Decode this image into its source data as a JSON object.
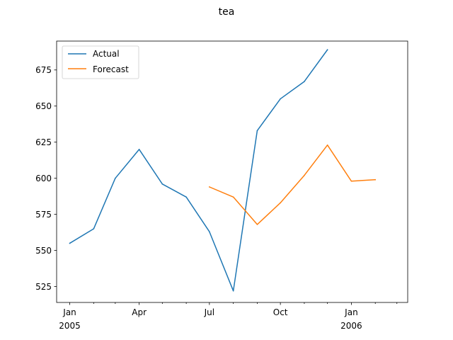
{
  "chart_data": {
    "type": "line",
    "title": "tea",
    "xlabel": "",
    "ylabel": "",
    "x_range": [
      "2004-12-15",
      "2006-03-15"
    ],
    "ylim": [
      514,
      695
    ],
    "y_ticks": [
      525,
      550,
      575,
      600,
      625,
      650,
      675
    ],
    "x_ticks_major": [
      {
        "date": "2005-01-01",
        "label": "Jan",
        "sub": "2005"
      },
      {
        "date": "2005-04-01",
        "label": "Apr",
        "sub": ""
      },
      {
        "date": "2005-07-01",
        "label": "Jul",
        "sub": ""
      },
      {
        "date": "2005-10-01",
        "label": "Oct",
        "sub": ""
      },
      {
        "date": "2006-01-01",
        "label": "Jan",
        "sub": "2006"
      }
    ],
    "x_ticks_minor": [
      "2005-02-01",
      "2005-03-01",
      "2005-05-01",
      "2005-06-01",
      "2005-08-01",
      "2005-09-01",
      "2005-11-01",
      "2005-12-01",
      "2006-02-01",
      "2006-03-01"
    ],
    "legend": "upper-left",
    "grid": false,
    "series": [
      {
        "name": "Actual",
        "color": "#1f77b4",
        "x": [
          "2005-01-01",
          "2005-02-01",
          "2005-03-01",
          "2005-04-01",
          "2005-05-01",
          "2005-06-01",
          "2005-07-01",
          "2005-08-01",
          "2005-09-01",
          "2005-10-01",
          "2005-11-01",
          "2005-12-01"
        ],
        "y": [
          555,
          565,
          600,
          620,
          596,
          587,
          563,
          522,
          633,
          655,
          667,
          689
        ]
      },
      {
        "name": "Forecast",
        "color": "#ff7f0e",
        "x": [
          "2005-07-01",
          "2005-08-01",
          "2005-09-01",
          "2005-10-01",
          "2005-11-01",
          "2005-12-01",
          "2006-01-01",
          "2006-02-01"
        ],
        "y": [
          594,
          587,
          568,
          583,
          602,
          623,
          598,
          599
        ]
      }
    ]
  }
}
